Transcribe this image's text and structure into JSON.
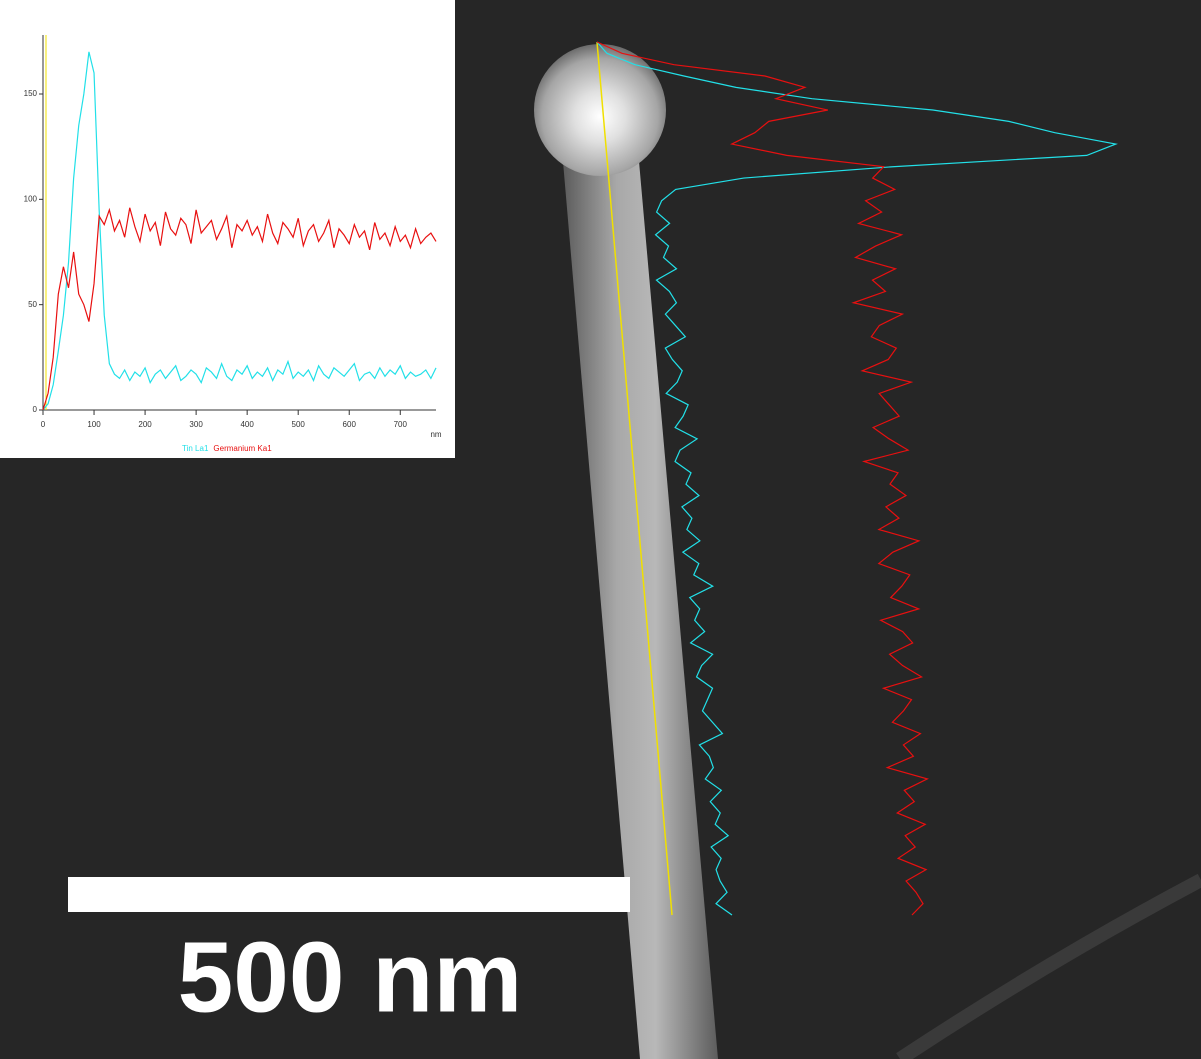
{
  "chart_data": {
    "type": "line",
    "x_label": "nm",
    "x": [
      0,
      10,
      20,
      30,
      40,
      50,
      60,
      70,
      80,
      90,
      100,
      110,
      120,
      130,
      140,
      150,
      160,
      170,
      180,
      190,
      200,
      210,
      220,
      230,
      240,
      250,
      260,
      270,
      280,
      290,
      300,
      310,
      320,
      330,
      340,
      350,
      360,
      370,
      380,
      390,
      400,
      410,
      420,
      430,
      440,
      450,
      460,
      470,
      480,
      490,
      500,
      510,
      520,
      530,
      540,
      550,
      560,
      570,
      580,
      590,
      600,
      610,
      620,
      630,
      640,
      650,
      660,
      670,
      680,
      690,
      700,
      710,
      720,
      730,
      740,
      750,
      760,
      770
    ],
    "series": [
      {
        "name": "Tin La1",
        "color": "#22e0e8",
        "values": [
          0,
          3,
          12,
          28,
          45,
          70,
          110,
          135,
          150,
          170,
          160,
          95,
          45,
          22,
          17,
          15,
          19,
          14,
          18,
          16,
          20,
          13,
          17,
          19,
          15,
          18,
          21,
          14,
          16,
          19,
          17,
          13,
          20,
          18,
          15,
          22,
          16,
          14,
          19,
          17,
          21,
          15,
          18,
          16,
          20,
          14,
          19,
          17,
          23,
          15,
          18,
          16,
          19,
          14,
          21,
          17,
          15,
          20,
          18,
          16,
          19,
          22,
          14,
          17,
          18,
          15,
          20,
          16,
          19,
          17,
          21,
          15,
          18,
          16,
          17,
          19,
          15,
          20
        ]
      },
      {
        "name": "Germanium Ka1",
        "color": "#e81010",
        "values": [
          0,
          8,
          25,
          55,
          68,
          58,
          75,
          55,
          50,
          42,
          60,
          92,
          88,
          95,
          85,
          90,
          82,
          96,
          87,
          80,
          93,
          85,
          89,
          78,
          94,
          86,
          83,
          91,
          88,
          79,
          95,
          84,
          87,
          90,
          81,
          86,
          92,
          77,
          88,
          85,
          90,
          83,
          87,
          80,
          93,
          84,
          79,
          89,
          86,
          82,
          91,
          78,
          85,
          88,
          80,
          84,
          90,
          77,
          86,
          83,
          79,
          88,
          82,
          85,
          76,
          89,
          81,
          84,
          78,
          87,
          80,
          83,
          77,
          86,
          79,
          82,
          84,
          80
        ]
      }
    ],
    "xlim": [
      0,
      770
    ],
    "ylim": [
      0,
      178
    ],
    "xticks": [
      0,
      100,
      200,
      300,
      400,
      500,
      600,
      700
    ],
    "yticks": [
      0,
      50,
      100,
      150
    ]
  },
  "image": {
    "scale_bar_label": "500 nm"
  }
}
